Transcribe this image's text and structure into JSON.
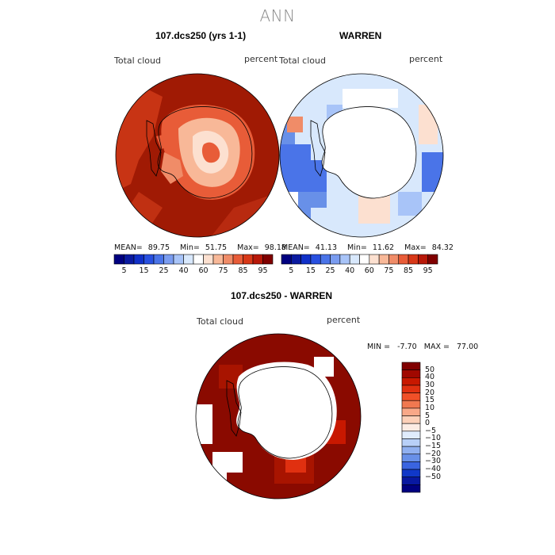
{
  "page": {
    "title": "ANN"
  },
  "panels": [
    {
      "title": "107.dcs250 (yrs 1-1)",
      "variable": "Total cloud",
      "units": "percent",
      "stats": {
        "mean_label": "MEAN=",
        "mean": "89.75",
        "min_label": "Min=",
        "min": "51.75",
        "max_label": "Max=",
        "max": "98.18"
      }
    },
    {
      "title": "WARREN",
      "variable": "Total cloud",
      "units": "percent",
      "stats": {
        "mean_label": "MEAN=",
        "mean": "41.13",
        "min_label": "Min=",
        "min": "11.62",
        "max_label": "Max=",
        "max": "84.32"
      }
    }
  ],
  "abs_colorbar": {
    "colors": [
      "#000080",
      "#0a1aa0",
      "#1030c8",
      "#2850e0",
      "#4a74e8",
      "#7a9cf0",
      "#a8c4f8",
      "#d8e8fc",
      "#ffffff",
      "#fce0d0",
      "#f8b898",
      "#f08c68",
      "#e85c38",
      "#d83818",
      "#b81808",
      "#800000"
    ],
    "labels": [
      "5",
      "15",
      "25",
      "40",
      "60",
      "75",
      "85",
      "95"
    ]
  },
  "diff_panel": {
    "title": "107.dcs250 - WARREN",
    "variable": "Total cloud",
    "units": "percent",
    "stats": {
      "min_label": "MIN =",
      "min": "-7.70",
      "max_label": "MAX =",
      "max": "77.00"
    }
  },
  "diff_colorbar": {
    "colors_top_to_bottom": [
      "#800000",
      "#a00800",
      "#c81800",
      "#e03010",
      "#f05028",
      "#f07850",
      "#f8a888",
      "#fcd0b8",
      "#fcece4",
      "#e0ecfc",
      "#b8d0f8",
      "#90b0f0",
      "#6890e8",
      "#3a64e0",
      "#1038c8",
      "#0818a0",
      "#000080"
    ],
    "labels_top_to_bottom": [
      "50",
      "40",
      "30",
      "20",
      "15",
      "10",
      "5",
      "0",
      "−5",
      "−10",
      "−15",
      "−20",
      "−30",
      "−40",
      "−50"
    ]
  }
}
